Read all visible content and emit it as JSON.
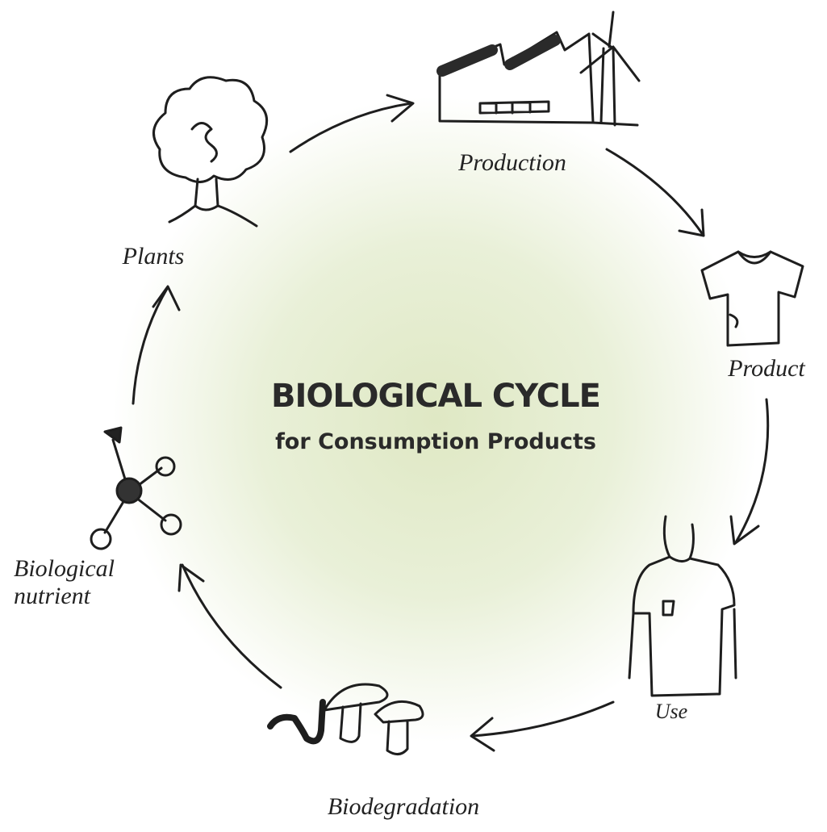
{
  "title": "BIOLOGICAL CYCLE",
  "subtitle": "for Consumption Products",
  "nodes": [
    {
      "label": "Production"
    },
    {
      "label": "Product"
    },
    {
      "label": "Use"
    },
    {
      "label": "Biodegradation"
    },
    {
      "label": "Biological nutrient"
    },
    {
      "label": "Plants"
    }
  ]
}
